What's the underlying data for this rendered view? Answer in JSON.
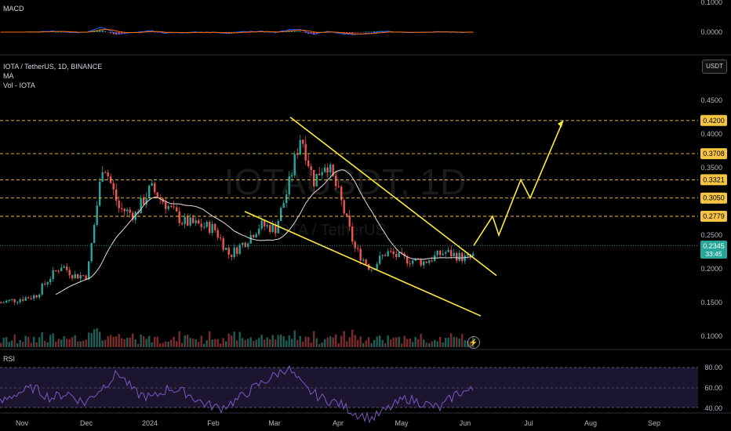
{
  "header": {
    "macd_title": "MACD",
    "symbol_line": "IOTA / TetherUS, 1D, BINANCE",
    "ma_title": "MA",
    "vol_title": "Vol - IOTA",
    "rsi_title": "RSI",
    "currency_button": "USDT",
    "watermark": "IOTAUSDT, 1D",
    "watermark_sub": "IOTA / TetherUS"
  },
  "colors": {
    "up": "#26a69a",
    "down": "#ef5350",
    "trendline": "#ffeb3b",
    "level_line": "#f5c542",
    "ma_line": "#ffffff",
    "rsi_line": "#7e57c2",
    "macd_line": "#2962ff",
    "signal_line": "#ff6d00",
    "last_price_bg": "#26a69a"
  },
  "icons": {
    "replay": "replay-icon"
  },
  "chart_data": [
    {
      "type": "line",
      "name": "MACD pane",
      "yticks": [
        "0.1000",
        "0.0000"
      ]
    },
    {
      "type": "candlestick",
      "title": "IOTA / TetherUS, 1D, BINANCE",
      "x_ticks": [
        "Nov",
        "Dec",
        "2024",
        "Feb",
        "Mar",
        "Apr",
        "May",
        "Jun",
        "Jul",
        "Aug",
        "Sep"
      ],
      "y_ticks": [
        "0.4500",
        "0.4000",
        "0.3500",
        "0.3000",
        "0.2500",
        "0.2000",
        "0.1500",
        "0.1000"
      ],
      "ylim": [
        0.08,
        0.47
      ],
      "last_price": "0.2345",
      "countdown": "33:45",
      "horizontal_levels": [
        "0.4200",
        "0.3708",
        "0.3321",
        "0.3050",
        "0.2779"
      ],
      "price_path": [
        [
          "Nov",
          0.15
        ],
        [
          "Nov",
          0.16
        ],
        [
          "Nov",
          0.185
        ],
        [
          "Nov",
          0.205
        ],
        [
          "Nov",
          0.19
        ],
        [
          "Dec",
          0.19
        ],
        [
          "Dec",
          0.36
        ],
        [
          "Dec",
          0.29
        ],
        [
          "Dec",
          0.28
        ],
        [
          "2024",
          0.32
        ],
        [
          "2024",
          0.27
        ],
        [
          "Feb",
          0.26
        ],
        [
          "Feb",
          0.22
        ],
        [
          "Feb",
          0.24
        ],
        [
          "Feb",
          0.265
        ],
        [
          "Mar",
          0.26
        ],
        [
          "Mar",
          0.32
        ],
        [
          "Mar",
          0.4
        ],
        [
          "Mar",
          0.33
        ],
        [
          "Mar",
          0.36
        ],
        [
          "Apr",
          0.31
        ],
        [
          "Apr",
          0.23
        ],
        [
          "Apr",
          0.2
        ],
        [
          "Apr",
          0.225
        ],
        [
          "May",
          0.215
        ],
        [
          "May",
          0.21
        ],
        [
          "May",
          0.225
        ],
        [
          "Jun",
          0.215
        ],
        [
          "Jun",
          0.2345
        ]
      ],
      "trendlines": [
        {
          "from": [
            "Mar",
            0.425
          ],
          "to": [
            "Jun",
            0.19
          ]
        },
        {
          "from": [
            "Feb",
            0.285
          ],
          "to": [
            "Jun",
            0.13
          ]
        }
      ],
      "projection_path": [
        [
          "Jun",
          0.2345
        ],
        [
          "Jun",
          0.2779
        ],
        [
          "Jun",
          0.25
        ],
        [
          "Jul",
          0.3321
        ],
        [
          "Jul",
          0.305
        ],
        [
          "Jul",
          0.42
        ]
      ]
    },
    {
      "type": "line",
      "name": "RSI pane",
      "yticks": [
        "80.00",
        "60.00",
        "40.00"
      ],
      "ylim": [
        25,
        90
      ],
      "values": [
        45,
        55,
        60,
        50,
        55,
        45,
        60,
        75,
        55,
        50,
        60,
        55,
        45,
        40,
        48,
        60,
        70,
        80,
        60,
        50,
        45,
        35,
        30,
        40,
        50,
        45,
        40,
        55,
        58
      ]
    }
  ]
}
